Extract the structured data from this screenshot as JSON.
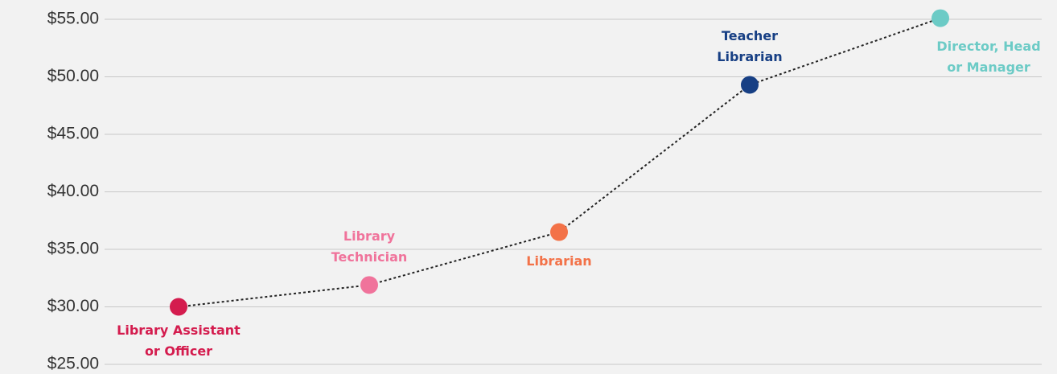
{
  "chart_data": {
    "type": "line",
    "categories": [
      "Library Assistant or Officer",
      "Library Technician",
      "Librarian",
      "Teacher Librarian",
      "Director, Head or Manager"
    ],
    "values": [
      30.0,
      31.9,
      36.5,
      49.3,
      55.1
    ],
    "colors": [
      "#d41c4e",
      "#f0739b",
      "#f37248",
      "#173f84",
      "#6ccbc6"
    ],
    "line_color": "#222222",
    "ylim": [
      25,
      55
    ],
    "yticks": [
      {
        "value": 25,
        "label": "$25.00"
      },
      {
        "value": 30,
        "label": "$30.00"
      },
      {
        "value": 35,
        "label": "$35.00"
      },
      {
        "value": 40,
        "label": "$40.00"
      },
      {
        "value": 45,
        "label": "$45.00"
      },
      {
        "value": 50,
        "label": "$50.00"
      },
      {
        "value": 55,
        "label": "$55.00"
      }
    ],
    "grid": true
  }
}
